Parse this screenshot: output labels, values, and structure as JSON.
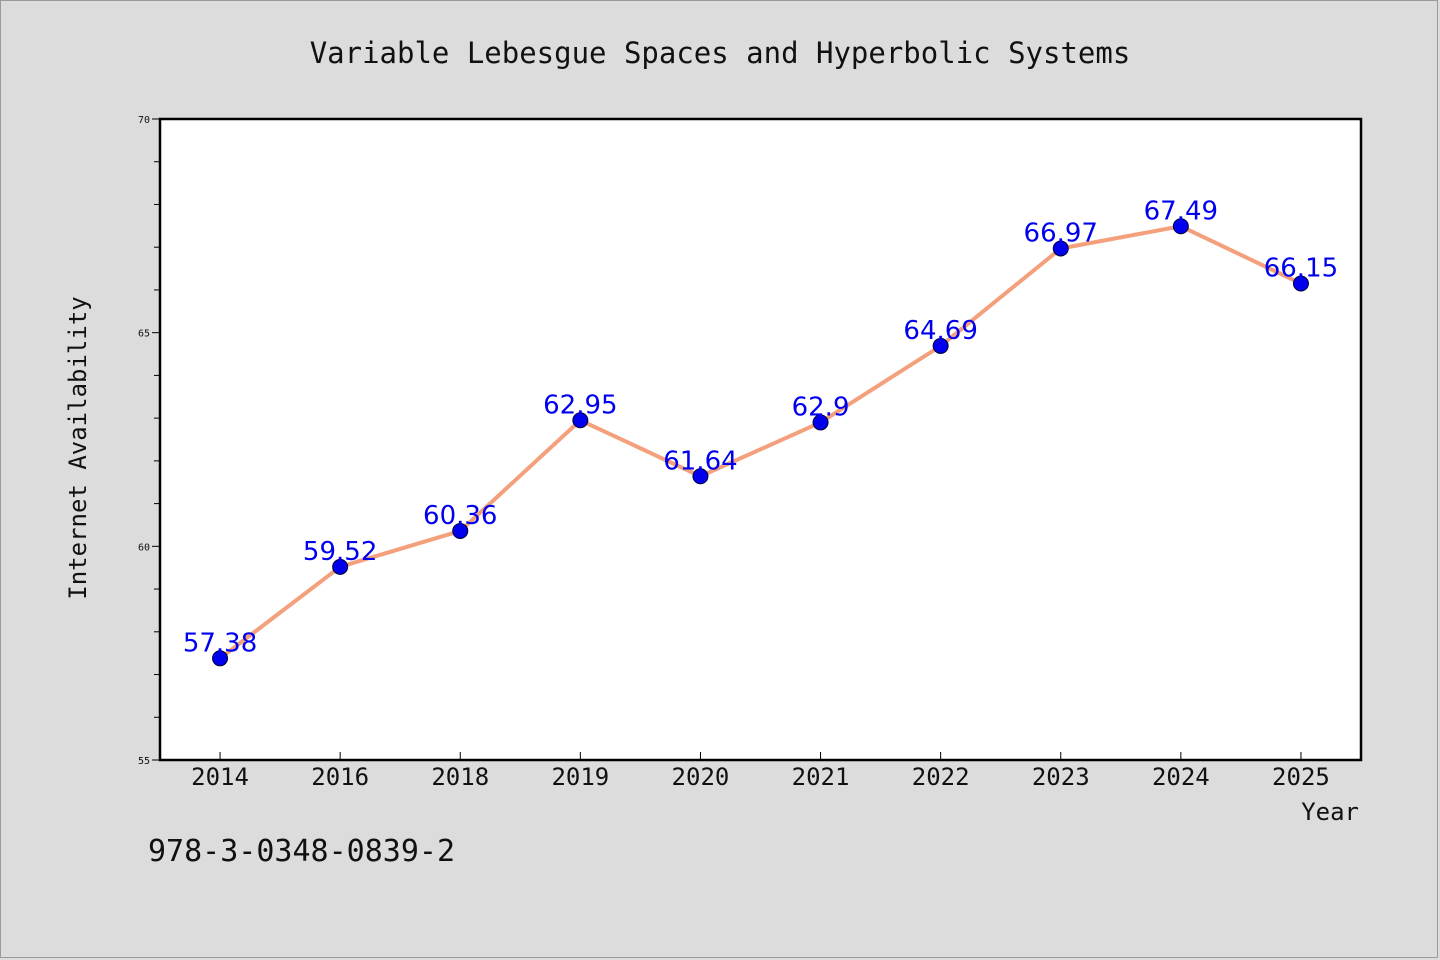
{
  "chart_data": {
    "type": "line",
    "title": "Variable Lebesgue Spaces and Hyperbolic Systems",
    "xlabel": "Year",
    "ylabel": "Internet Availability",
    "categories": [
      "2014",
      "2016",
      "2018",
      "2019",
      "2020",
      "2021",
      "2022",
      "2023",
      "2024",
      "2025"
    ],
    "values": [
      57.38,
      59.52,
      60.36,
      62.95,
      61.64,
      62.9,
      64.69,
      66.97,
      67.49,
      66.15
    ],
    "data_labels": [
      "57.38",
      "59.52",
      "60.36",
      "62.95",
      "61.64",
      "62.9",
      "64.69",
      "66.97",
      "67.49",
      "66.15"
    ],
    "ylim": [
      55,
      70
    ],
    "yticks": [
      "55",
      "60",
      "65",
      "70"
    ],
    "grid": false,
    "legend": "none",
    "line_color": "#f4a07c",
    "marker_color": "#0000ee",
    "label_color": "#0000ee"
  },
  "footer_code": "978-3-0348-0839-2"
}
